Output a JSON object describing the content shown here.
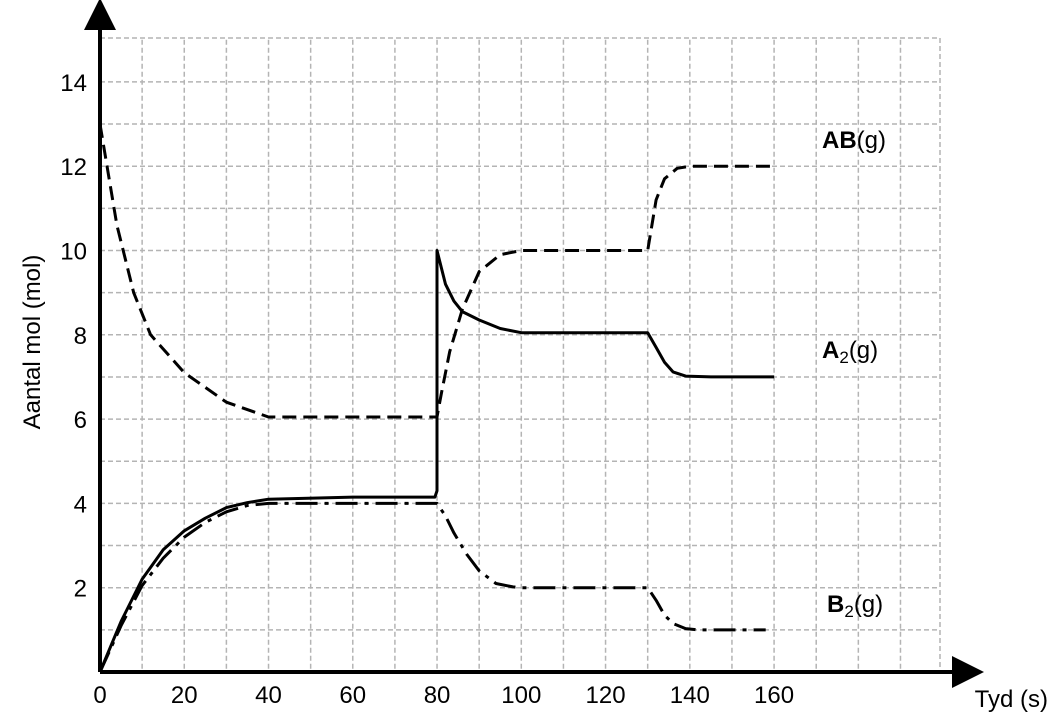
{
  "chart_data": {
    "type": "line",
    "xlabel": "Tyd (s)",
    "ylabel": "Aantal mol (mol)",
    "xlim": [
      0,
      160
    ],
    "ylim": [
      0,
      14
    ],
    "x_ticks": [
      "0",
      "20",
      "40",
      "60",
      "80",
      "100",
      "120",
      "140",
      "160"
    ],
    "y_ticks": [
      "2",
      "4",
      "6",
      "8",
      "10",
      "12",
      "14"
    ],
    "grid": true,
    "series": [
      {
        "name": "AB(g)",
        "name_bold": "AB",
        "name_rest": "(g)",
        "style": "dashed",
        "points": [
          [
            0,
            13
          ],
          [
            4,
            10.6
          ],
          [
            8,
            9
          ],
          [
            12,
            8
          ],
          [
            20,
            7.1
          ],
          [
            30,
            6.4
          ],
          [
            40,
            6.05
          ],
          [
            60,
            6.05
          ],
          [
            80,
            6.05
          ],
          [
            81,
            6.6
          ],
          [
            83,
            7.6
          ],
          [
            86,
            8.6
          ],
          [
            90,
            9.5
          ],
          [
            95,
            9.9
          ],
          [
            100,
            10
          ],
          [
            120,
            10
          ],
          [
            130,
            10
          ],
          [
            131,
            10.6
          ],
          [
            132,
            11.2
          ],
          [
            134,
            11.7
          ],
          [
            137,
            11.95
          ],
          [
            140,
            12
          ],
          [
            150,
            12
          ],
          [
            160,
            12
          ]
        ]
      },
      {
        "name": "A2(g)",
        "name_bold": "A",
        "name_sub": "2",
        "name_rest": "(g)",
        "style": "solid",
        "points": [
          [
            0,
            0
          ],
          [
            5,
            1.2
          ],
          [
            10,
            2.2
          ],
          [
            15,
            2.9
          ],
          [
            20,
            3.35
          ],
          [
            25,
            3.65
          ],
          [
            30,
            3.9
          ],
          [
            35,
            4.02
          ],
          [
            40,
            4.1
          ],
          [
            60,
            4.15
          ],
          [
            79.5,
            4.15
          ],
          [
            80,
            4.3
          ],
          [
            80,
            4.3
          ],
          [
            80,
            10
          ],
          [
            82,
            9.2
          ],
          [
            84,
            8.8
          ],
          [
            86,
            8.55
          ],
          [
            90,
            8.35
          ],
          [
            95,
            8.15
          ],
          [
            100,
            8.05
          ],
          [
            120,
            8.05
          ],
          [
            130,
            8.05
          ],
          [
            132,
            7.7
          ],
          [
            134,
            7.35
          ],
          [
            136,
            7.12
          ],
          [
            139,
            7.02
          ],
          [
            145,
            7
          ],
          [
            160,
            7
          ]
        ]
      },
      {
        "name": "B2(g)",
        "name_bold": "B",
        "name_sub": "2",
        "name_rest": "(g)",
        "style": "dashdot",
        "points": [
          [
            0,
            0
          ],
          [
            5,
            1.1
          ],
          [
            10,
            2.05
          ],
          [
            15,
            2.7
          ],
          [
            20,
            3.2
          ],
          [
            25,
            3.55
          ],
          [
            30,
            3.8
          ],
          [
            35,
            3.95
          ],
          [
            40,
            4
          ],
          [
            60,
            4
          ],
          [
            80,
            4
          ],
          [
            82,
            3.7
          ],
          [
            84,
            3.3
          ],
          [
            87,
            2.8
          ],
          [
            90,
            2.4
          ],
          [
            94,
            2.1
          ],
          [
            98,
            2.02
          ],
          [
            100,
            2
          ],
          [
            120,
            2
          ],
          [
            130,
            2
          ],
          [
            132,
            1.7
          ],
          [
            134,
            1.35
          ],
          [
            136,
            1.15
          ],
          [
            139,
            1.03
          ],
          [
            142,
            1
          ],
          [
            150,
            1
          ],
          [
            158,
            1
          ]
        ]
      }
    ]
  }
}
